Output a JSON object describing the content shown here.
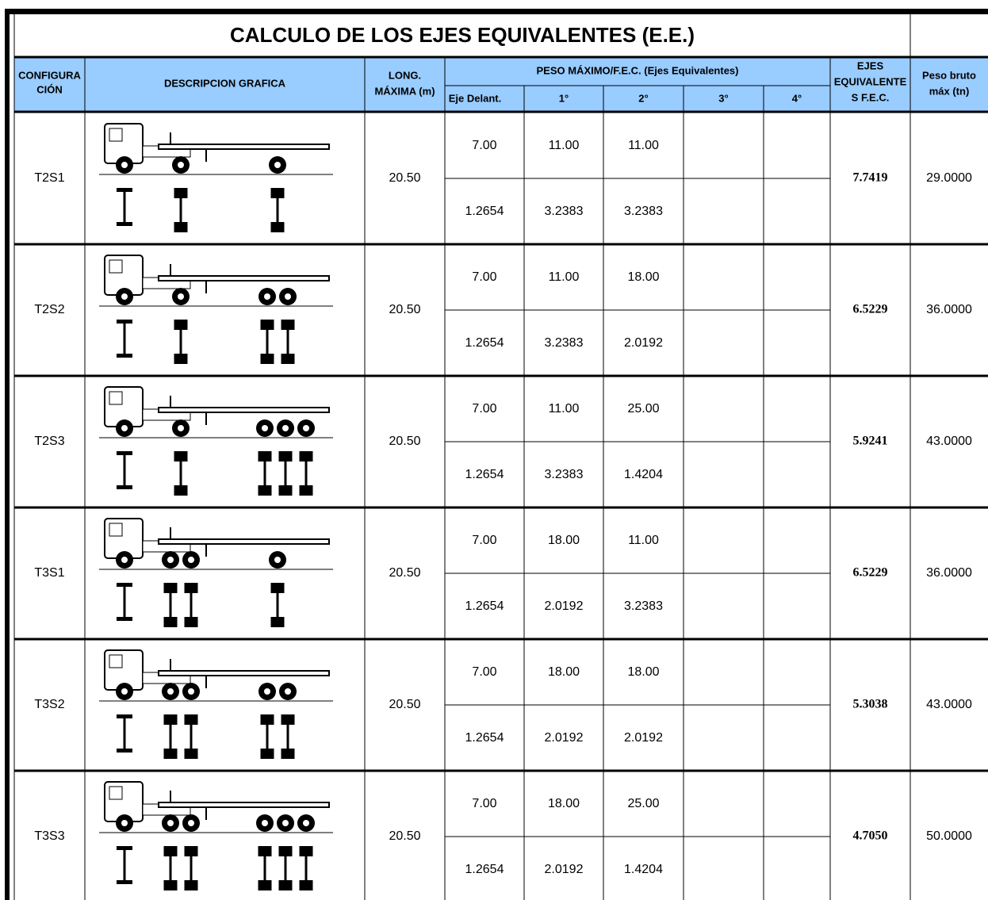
{
  "table": {
    "title": "CALCULO DE LOS EJES EQUIVALENTES (E.E.)",
    "header": {
      "configuracion": [
        "CONFIGURA",
        "CIÓN"
      ],
      "descripcion": "DESCRIPCION GRAFICA",
      "longitud": [
        "LONG.",
        "MÁXIMA (m)"
      ],
      "peso": "PESO MÁXIMO/F.E.C. (Ejes Equivalentes)",
      "ejes": [
        "Eje Delant.",
        "1°",
        "2°",
        "3°",
        "4°"
      ],
      "fec": [
        "EJES",
        "EQUIVALENTE",
        "S F.E.C."
      ],
      "peso_bruto": [
        "Peso bruto",
        "máx (tn)"
      ]
    },
    "rows": [
      {
        "config": "T2S1",
        "longitud": "20.50",
        "pesos": [
          "7.00",
          "11.00",
          "11.00"
        ],
        "factores": [
          "1.2654",
          "3.2383",
          "3.2383"
        ],
        "ee": "7.7419",
        "peso_bruto": "29.0000"
      },
      {
        "config": "T2S2",
        "longitud": "20.50",
        "pesos": [
          "7.00",
          "11.00",
          "18.00"
        ],
        "factores": [
          "1.2654",
          "3.2383",
          "2.0192"
        ],
        "ee": "6.5229",
        "peso_bruto": "36.0000"
      },
      {
        "config": "T2S3",
        "longitud": "20.50",
        "pesos": [
          "7.00",
          "11.00",
          "25.00"
        ],
        "factores": [
          "1.2654",
          "3.2383",
          "1.4204"
        ],
        "ee": "5.9241",
        "peso_bruto": "43.0000"
      },
      {
        "config": "T3S1",
        "longitud": "20.50",
        "pesos": [
          "7.00",
          "18.00",
          "11.00"
        ],
        "factores": [
          "1.2654",
          "2.0192",
          "3.2383"
        ],
        "ee": "6.5229",
        "peso_bruto": "36.0000"
      },
      {
        "config": "T3S2",
        "longitud": "20.50",
        "pesos": [
          "7.00",
          "18.00",
          "18.00"
        ],
        "factores": [
          "1.2654",
          "2.0192",
          "2.0192"
        ],
        "ee": "5.3038",
        "peso_bruto": "43.0000"
      },
      {
        "config": "T3S3",
        "longitud": "20.50",
        "pesos": [
          "7.00",
          "18.00",
          "25.00"
        ],
        "factores": [
          "1.2654",
          "2.0192",
          "1.4204"
        ],
        "ee": "4.7050",
        "peso_bruto": "50.0000"
      }
    ]
  }
}
